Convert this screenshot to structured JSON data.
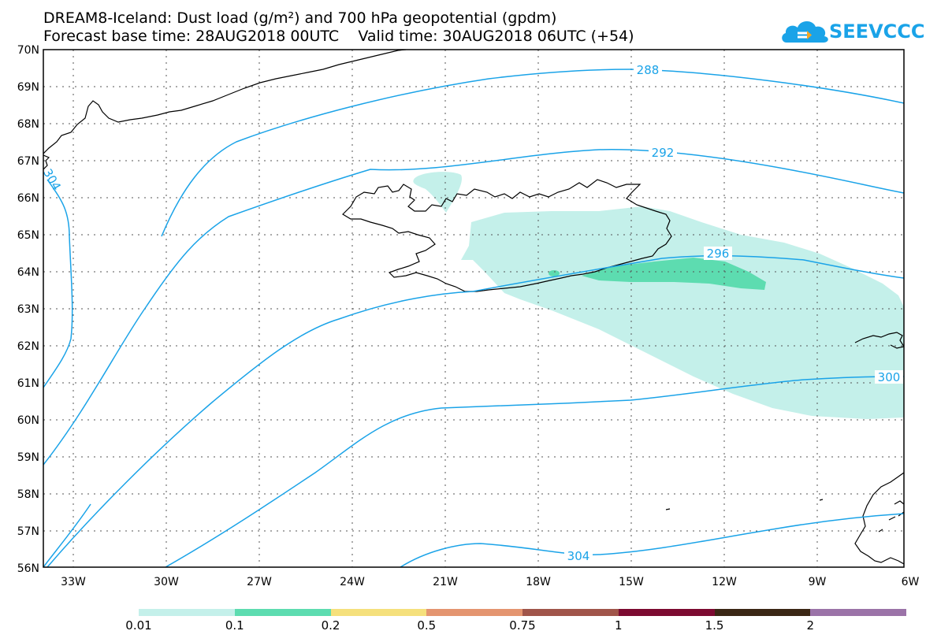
{
  "header": {
    "title_line1": "DREAM8-Iceland: Dust load (g/m²) and 700 hPa geopotential (gpdm)",
    "forecast_base": "Forecast base time: 28AUG2018 00UTC",
    "valid_time": "Valid time: 30AUG2018 06UTC (+54)"
  },
  "logo": {
    "text": "SEEVCCC",
    "color": "#1aa3e8"
  },
  "map": {
    "lat_labels": [
      "70N",
      "69N",
      "68N",
      "67N",
      "66N",
      "65N",
      "64N",
      "63N",
      "62N",
      "61N",
      "60N",
      "59N",
      "58N",
      "57N",
      "56N"
    ],
    "lon_labels": [
      "33W",
      "30W",
      "27W",
      "24W",
      "21W",
      "18W",
      "15W",
      "12W",
      "9W",
      "6W"
    ],
    "contour_labels": [
      "288",
      "292",
      "296",
      "300",
      "304",
      "304"
    ],
    "contour_color": "#1aa3e8",
    "coast_color": "#000000"
  },
  "legend": {
    "labels": [
      "0.01",
      "0.1",
      "0.2",
      "0.5",
      "0.75",
      "1",
      "1.5",
      "2"
    ],
    "colors": [
      "#c4f0ea",
      "#5ddcb0",
      "#f5e07c",
      "#e49570",
      "#a0554a",
      "#7c0a31",
      "#3b2715",
      "#9b73a8"
    ]
  }
}
